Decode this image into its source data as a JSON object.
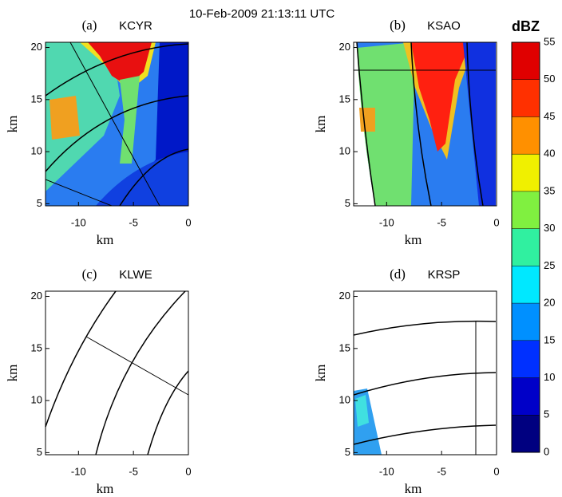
{
  "title": "10-Feb-2009 21:13:11 UTC",
  "chart_data": [
    {
      "type": "radar",
      "label": "(a)",
      "title": "KCYR",
      "xlabel": "km",
      "ylabel": "km",
      "xlim": [
        -13,
        0
      ],
      "ylim": [
        4.8,
        20.5
      ],
      "xticks": [
        -10,
        -5,
        0
      ],
      "yticks": [
        5,
        10,
        15,
        20
      ]
    },
    {
      "type": "radar",
      "label": "(b)",
      "title": "KSAO",
      "xlabel": "km",
      "ylabel": "km",
      "xlim": [
        -13,
        0
      ],
      "ylim": [
        4.8,
        20.5
      ],
      "xticks": [
        -10,
        -5,
        0
      ],
      "yticks": [
        5,
        10,
        15,
        20
      ]
    },
    {
      "type": "radar",
      "label": "(c)",
      "title": "KLWE",
      "xlabel": "km",
      "ylabel": "km",
      "xlim": [
        -13,
        0
      ],
      "ylim": [
        4.8,
        20.5
      ],
      "xticks": [
        -10,
        -5,
        0
      ],
      "yticks": [
        5,
        10,
        15,
        20
      ]
    },
    {
      "type": "radar",
      "label": "(d)",
      "title": "KRSP",
      "xlabel": "km",
      "ylabel": "km",
      "xlim": [
        -13,
        0
      ],
      "ylim": [
        4.8,
        20.5
      ],
      "xticks": [
        -10,
        -5,
        0
      ],
      "yticks": [
        5,
        10,
        15,
        20
      ]
    },
    {
      "type": "colorbar",
      "label": "dBZ",
      "lim": [
        0,
        55
      ],
      "ticks": [
        0,
        5,
        10,
        15,
        20,
        25,
        30,
        35,
        40,
        45,
        50,
        55
      ],
      "colors": [
        "#000080",
        "#0000c8",
        "#0030ff",
        "#0090ff",
        "#00e8ff",
        "#30f0a0",
        "#80f040",
        "#f0f000",
        "#ff9000",
        "#ff3000",
        "#e00000"
      ]
    }
  ]
}
